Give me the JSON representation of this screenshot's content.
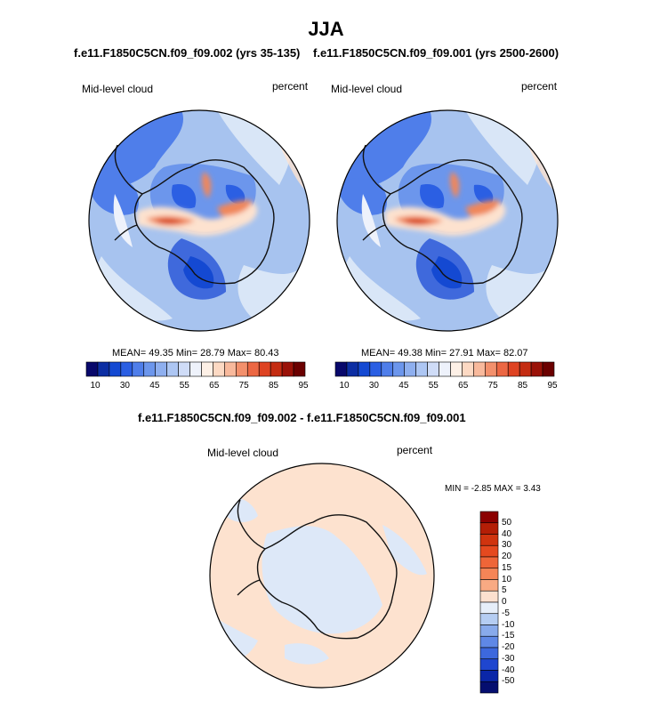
{
  "season": "JJA",
  "colors": {
    "ocean_light": "#d9e6f7",
    "ocean_mid": "#a7c3ef",
    "ocean_deep": "#6c96e6",
    "blue_strong": "#3f69dc",
    "peach": "#fde2cf",
    "orange": "#f0875c",
    "red": "#d6431f",
    "coast": "#111111"
  },
  "panels": [
    {
      "title": "f.e11.F1850C5CN.f09_f09.002 (yrs 35-135)",
      "variable": "Mid-level cloud",
      "units": "percent",
      "mean_label": "MEAN=",
      "mean": "49.35",
      "min_label": "Min=",
      "min": "28.79",
      "max_label": "Max=",
      "max": "80.43"
    },
    {
      "title": "f.e11.F1850C5CN.f09_f09.001 (yrs 2500-2600)",
      "variable": "Mid-level cloud",
      "units": "percent",
      "mean_label": "MEAN=",
      "mean": "49.38",
      "min_label": "Min=",
      "min": "27.91",
      "max_label": "Max=",
      "max": "82.07"
    }
  ],
  "diff": {
    "title": "f.e11.F1850C5CN.f09_f09.002 - f.e11.F1850C5CN.f09_f09.001",
    "variable": "Mid-level cloud",
    "units": "percent",
    "stats": "MIN =  -2.85 MAX =   3.43"
  },
  "chart_data": [
    {
      "type": "heatmap",
      "projection": "south polar stereographic",
      "title": "f.e11.F1850C5CN.f09_f09.002 (yrs 35-135)",
      "field": "Mid-level cloud (percent)",
      "mean": 49.35,
      "min": 28.79,
      "max": 80.43,
      "colorbar": {
        "orientation": "horizontal",
        "levels": [
          10,
          15,
          20,
          25,
          30,
          35,
          40,
          45,
          50,
          55,
          60,
          65,
          70,
          75,
          80,
          85,
          90,
          95
        ],
        "tick_labels": [
          "10",
          "30",
          "45",
          "55",
          "65",
          "75",
          "85",
          "95"
        ],
        "colors": [
          "#08086b",
          "#0c2ea3",
          "#1449d2",
          "#2b5fe3",
          "#4f7eea",
          "#6c96ec",
          "#8eafef",
          "#adc6f3",
          "#cfdcf7",
          "#eef2fb",
          "#fdf0e6",
          "#fcd9c3",
          "#f8b99c",
          "#f3906c",
          "#ec6743",
          "#de4322",
          "#c42c12",
          "#9a1208",
          "#6b0000"
        ]
      }
    },
    {
      "type": "heatmap",
      "projection": "south polar stereographic",
      "title": "f.e11.F1850C5CN.f09_f09.001 (yrs 2500-2600)",
      "field": "Mid-level cloud (percent)",
      "mean": 49.38,
      "min": 27.91,
      "max": 82.07,
      "colorbar": {
        "orientation": "horizontal",
        "levels": [
          10,
          15,
          20,
          25,
          30,
          35,
          40,
          45,
          50,
          55,
          60,
          65,
          70,
          75,
          80,
          85,
          90,
          95
        ],
        "tick_labels": [
          "10",
          "30",
          "45",
          "55",
          "65",
          "75",
          "85",
          "95"
        ],
        "colors": [
          "#08086b",
          "#0c2ea3",
          "#1449d2",
          "#2b5fe3",
          "#4f7eea",
          "#6c96ec",
          "#8eafef",
          "#adc6f3",
          "#cfdcf7",
          "#eef2fb",
          "#fdf0e6",
          "#fcd9c3",
          "#f8b99c",
          "#f3906c",
          "#ec6743",
          "#de4322",
          "#c42c12",
          "#9a1208",
          "#6b0000"
        ]
      }
    },
    {
      "type": "heatmap",
      "projection": "south polar stereographic",
      "title": "f.e11.F1850C5CN.f09_f09.002 - f.e11.F1850C5CN.f09_f09.001",
      "field": "Mid-level cloud difference (percent)",
      "min": -2.85,
      "max": 3.43,
      "colorbar": {
        "orientation": "vertical",
        "tick_labels": [
          "50",
          "40",
          "30",
          "20",
          "15",
          "10",
          "5",
          "0",
          "-5",
          "-10",
          "-15",
          "-20",
          "-30",
          "-40",
          "-50"
        ],
        "colors": [
          "#8b0000",
          "#b41e06",
          "#d0340f",
          "#e5491f",
          "#ef6538",
          "#f58557",
          "#f8aa83",
          "#fce0cf",
          "#e6eef9",
          "#b5cdf2",
          "#88aaeb",
          "#5f88e6",
          "#3d68dd",
          "#1f46cf",
          "#0a26a8",
          "#050e6f"
        ]
      }
    }
  ]
}
